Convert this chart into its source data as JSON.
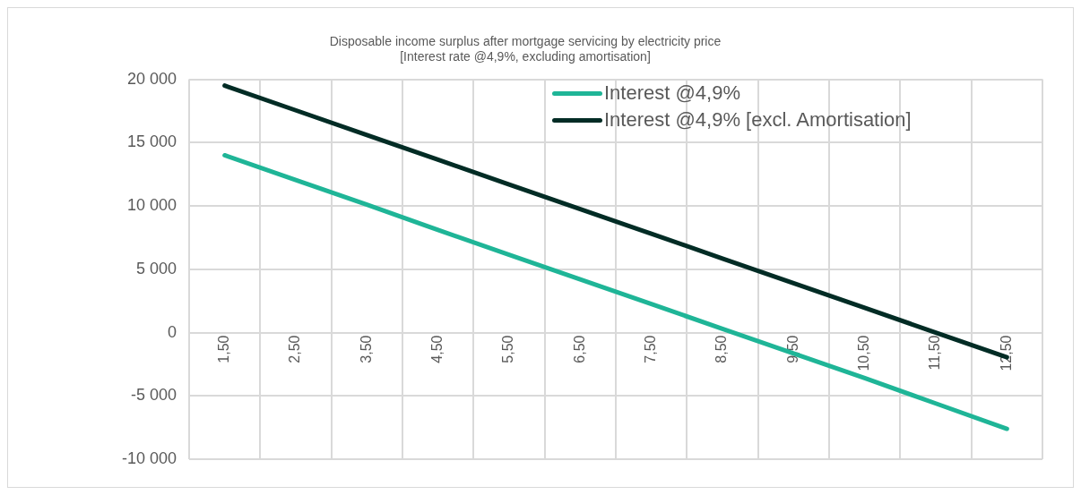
{
  "chart_data": {
    "type": "line",
    "title": "Disposable income surplus after mortgage servicing by electricity price\n[Interest rate @4,9%, excluding amortisation]",
    "categories": [
      "1,50",
      "2,50",
      "3,50",
      "4,50",
      "5,50",
      "6,50",
      "7,50",
      "8,50",
      "9,50",
      "10,50",
      "11,50",
      "12,50"
    ],
    "series": [
      {
        "name": "Interest @4,9%",
        "color": "#1fb597",
        "values": [
          14000,
          12050,
          10100,
          8100,
          6150,
          4200,
          2250,
          300,
          -1650,
          -3600,
          -5600,
          -7600
        ]
      },
      {
        "name": "Interest @4,9% [excl. Amortisation]",
        "color": "#022c25",
        "values": [
          19500,
          17550,
          15600,
          13650,
          11700,
          9750,
          7800,
          5850,
          3900,
          1950,
          0,
          -1950
        ]
      }
    ],
    "ylim": [
      -10000,
      20000
    ],
    "yticks": [
      {
        "value": -10000,
        "label": "-10 000"
      },
      {
        "value": -5000,
        "label": "-5 000"
      },
      0,
      {
        "value": 5000,
        "label": "5 000"
      },
      {
        "value": 10000,
        "label": "10 000"
      },
      {
        "value": 15000,
        "label": "15 000"
      },
      {
        "value": 20000,
        "label": "20 000"
      }
    ],
    "grid": true,
    "legend": "top",
    "marker": "none",
    "line_style": "solid"
  }
}
